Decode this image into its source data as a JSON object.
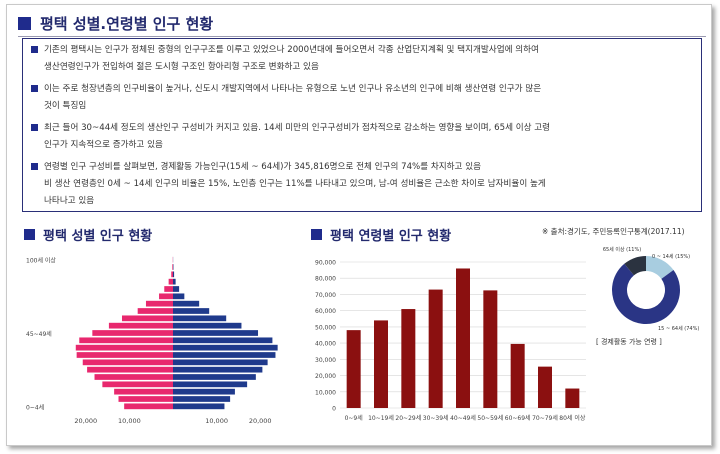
{
  "header": {
    "title": "평택 성별.연령별 인구 현황"
  },
  "summary": [
    {
      "lines": [
        "기존의 평택시는 인구가 정체된 중형의 인구구조를 이루고 있었으나 2000년대에 들어오면서 각종 산업단지계획 및 택지개발사업에 의하여",
        "생산연령인구가 전입하여 젊은 도시형 구조인 항아리형 구조로 변화하고 있음"
      ]
    },
    {
      "lines": [
        "이는 주로 청장년층의 인구비율이 높거나, 신도시 개발지역에서 나타나는 유형으로 노년 인구나 유소년의 인구에 비해 생산연령 인구가 많은",
        "것이 특징임"
      ]
    },
    {
      "lines": [
        "최근 들어 30~44세 정도의 생산인구 구성비가 커지고 있음. 14세 미만의 인구구성비가 점차적으로 감소하는 영향을 보이며, 65세 이상 고령",
        "인구가 지속적으로 증가하고 있음"
      ]
    },
    {
      "lines": [
        "연령별 인구 구성비를 살펴보면, 경제활동 가능인구(15세 ~ 64세)가 345,816명으로 전체 인구의 74%를 차지하고 있음",
        "비 생산 연령층인 0세 ~ 14세 인구의 비율은 15%, 노인층 인구는 11%를 나타내고 있으며, 남-여 성비율은 근소한 차이로 남자비율이 높게",
        "나타나고 있음"
      ]
    }
  ],
  "sections": {
    "pyramid_title": "평택 성별 인구 현황",
    "age_title": "평택 연령별 인구 현황"
  },
  "source_note": "※ 출처:경기도, 주민등록인구통계(2017.11)",
  "econ_label": "[ 경제활동 가능 연령 ]",
  "colors": {
    "female": "#e8286e",
    "male": "#1f3a8c",
    "bar": "#8b1010",
    "donut_main": "#2a3585",
    "donut_light": "#a8cde0",
    "donut_dark": "#2b3340"
  },
  "chart_data": [
    {
      "type": "bar",
      "subtype": "population-pyramid",
      "title": "평택 성별 인구 현황",
      "y_tick_labels": [
        "100세 이상",
        "45~49세",
        "0~4세"
      ],
      "x_tick_labels": [
        "20,000",
        "10,000",
        "10,000",
        "20,000"
      ],
      "xlim": [
        -25000,
        25000
      ],
      "rows": 21,
      "female": [
        11200,
        12500,
        13500,
        16200,
        18000,
        19700,
        20700,
        22100,
        22300,
        21500,
        18500,
        14700,
        11700,
        8100,
        6200,
        3200,
        2000,
        1000,
        400,
        150,
        50
      ],
      "male": [
        11800,
        13100,
        14200,
        17000,
        19000,
        20500,
        21700,
        23500,
        24000,
        22800,
        19500,
        15700,
        12200,
        8300,
        6000,
        2600,
        1400,
        600,
        250,
        100,
        30
      ]
    },
    {
      "type": "bar",
      "title": "평택 연령별 인구 현황",
      "categories": [
        "0~9세",
        "10~19세",
        "20~29세",
        "30~39세",
        "40~49세",
        "50~59세",
        "60~69세",
        "70~79세",
        "80세 이상"
      ],
      "values": [
        48000,
        54000,
        61000,
        73000,
        86000,
        72500,
        39500,
        25500,
        12000
      ],
      "y_ticks": [
        "90,000",
        "80,000",
        "70,000",
        "60,000",
        "50,000",
        "40,000",
        "30,000",
        "20,000",
        "10,000",
        "0"
      ],
      "ylim": [
        0,
        90000
      ]
    },
    {
      "type": "pie",
      "subtype": "donut",
      "labels": [
        "0 ~ 14세 (15%)",
        "15 ~ 64세 (74%)",
        "65세 이상 (11%)"
      ],
      "values": [
        15,
        74,
        11
      ]
    }
  ]
}
